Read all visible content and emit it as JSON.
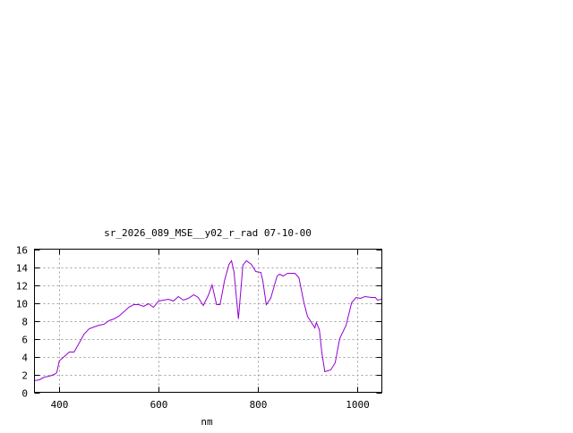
{
  "chart_data": {
    "type": "line",
    "title": "sr_2026_089_MSE__y02_r_rad 07-10-00",
    "xlabel": "nm",
    "ylabel": "",
    "xlim": [
      350,
      1050
    ],
    "ylim": [
      0,
      16
    ],
    "xticks": [
      400,
      600,
      800,
      1000
    ],
    "yticks": [
      0,
      2,
      4,
      6,
      8,
      10,
      12,
      14,
      16
    ],
    "grid": true,
    "color": "#9400d3",
    "series": [
      {
        "x": [
          350,
          360,
          370,
          380,
          390,
          395,
          400,
          410,
          420,
          430,
          440,
          450,
          460,
          470,
          480,
          490,
          500,
          510,
          520,
          530,
          540,
          550,
          560,
          570,
          580,
          590,
          600,
          610,
          620,
          630,
          640,
          650,
          660,
          671,
          680,
          690,
          700,
          708,
          717,
          724,
          733,
          742,
          747,
          752,
          761,
          770,
          777,
          787,
          796,
          806,
          810,
          817,
          826,
          839,
          844,
          851,
          860,
          875,
          883,
          893,
          900,
          915,
          918,
          924,
          929,
          935,
          947,
          956,
          965,
          978,
          989,
          998,
          1007,
          1016,
          1029,
          1037,
          1041,
          1050
        ],
        "y": [
          1.3,
          1.4,
          1.7,
          1.8,
          2.0,
          2.2,
          3.5,
          4.0,
          4.5,
          4.5,
          5.5,
          6.5,
          7.1,
          7.3,
          7.5,
          7.6,
          8.0,
          8.2,
          8.5,
          9.0,
          9.5,
          9.8,
          9.8,
          9.6,
          9.9,
          9.5,
          10.2,
          10.3,
          10.4,
          10.2,
          10.7,
          10.3,
          10.5,
          10.9,
          10.6,
          9.7,
          10.8,
          12.0,
          9.8,
          9.8,
          12.5,
          14.3,
          14.7,
          13.5,
          8.2,
          14.2,
          14.7,
          14.3,
          13.5,
          13.4,
          12.5,
          9.8,
          10.5,
          13.0,
          13.2,
          13.0,
          13.3,
          13.3,
          12.8,
          10.0,
          8.5,
          7.2,
          7.8,
          7.0,
          4.5,
          2.3,
          2.5,
          3.3,
          6.0,
          7.5,
          10.0,
          10.6,
          10.5,
          10.7,
          10.6,
          10.6,
          10.3,
          10.4
        ]
      }
    ]
  }
}
